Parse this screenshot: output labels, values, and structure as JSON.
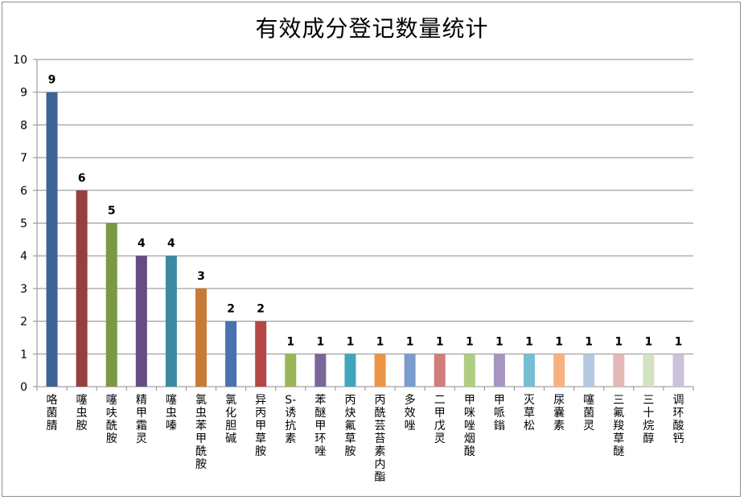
{
  "chart_data": {
    "type": "bar",
    "title": "有效成分登记数量统计",
    "xlabel": "",
    "ylabel": "",
    "ylim": [
      0,
      10
    ],
    "yticks": [
      0,
      1,
      2,
      3,
      4,
      5,
      6,
      7,
      8,
      9,
      10
    ],
    "grid": true,
    "legend": "none",
    "categories": [
      "咯菌腈",
      "噻虫胺",
      "噻呋酰胺",
      "精甲霜灵",
      "噻虫嗪",
      "氯虫苯甲酰胺",
      "氯化胆碱",
      "异丙甲草胺",
      "S-诱抗素",
      "苯醚甲环唑",
      "丙炔氟草胺",
      "丙酰芸苔素内酯",
      "多效唑",
      "二甲戊灵",
      "甲咪唑烟酸",
      "甲哌鎓",
      "灭草松",
      "尿囊素",
      "噻菌灵",
      "三氟羧草醚",
      "三十烷醇",
      "调环酸钙"
    ],
    "values": [
      9,
      6,
      5,
      4,
      4,
      3,
      2,
      2,
      1,
      1,
      1,
      1,
      1,
      1,
      1,
      1,
      1,
      1,
      1,
      1,
      1,
      1
    ],
    "colors": [
      "#3e6396",
      "#963f3c",
      "#7a9846",
      "#654d83",
      "#3b8aa0",
      "#c77c35",
      "#4a72b0",
      "#b44745",
      "#98b656",
      "#7b6599",
      "#42a5be",
      "#ee9446",
      "#7b9cce",
      "#d27d7b",
      "#b1cd82",
      "#a695c2",
      "#75bfd3",
      "#f8b281",
      "#b6c9e3",
      "#e3b8b7",
      "#d3e2c0",
      "#cbc2dc"
    ]
  }
}
